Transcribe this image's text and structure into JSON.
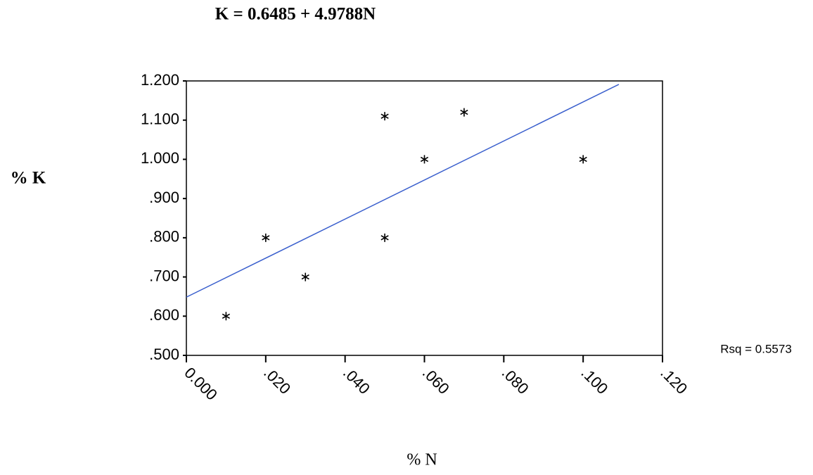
{
  "chart_data": {
    "type": "scatter",
    "title": "K = 0.6485 + 4.9788N",
    "x_label": "% N",
    "y_label": "% K",
    "annotation": "Rsq = 0.5573",
    "x": [
      0.01,
      0.02,
      0.03,
      0.05,
      0.05,
      0.06,
      0.07,
      0.1
    ],
    "values": [
      0.6,
      0.8,
      0.7,
      1.11,
      0.8,
      1.0,
      1.12,
      1.0
    ],
    "color": "#000000",
    "trend_line": {
      "color": "#3a5fcd",
      "x": [
        0,
        0.109
      ],
      "values": [
        0.6485,
        1.1912
      ]
    },
    "xlim": [
      0,
      0.12
    ],
    "ylim": [
      0.5,
      1.2
    ],
    "xticks": [
      {
        "value": 0,
        "label": "0.000"
      },
      {
        "value": 0.02,
        "label": ".020"
      },
      {
        "value": 0.04,
        "label": ".040"
      },
      {
        "value": 0.06,
        "label": ".060"
      },
      {
        "value": 0.08,
        "label": ".080"
      },
      {
        "value": 0.1,
        "label": ".100"
      },
      {
        "value": 0.12,
        "label": ".120"
      }
    ],
    "yticks": [
      {
        "value": 0.5,
        "label": ".500"
      },
      {
        "value": 0.6,
        "label": ".600"
      },
      {
        "value": 0.7,
        "label": ".700"
      },
      {
        "value": 0.8,
        "label": ".800"
      },
      {
        "value": 0.9,
        "label": ".900"
      },
      {
        "value": 1.0,
        "label": "1.000"
      },
      {
        "value": 1.1,
        "label": "1.100"
      },
      {
        "value": 1.2,
        "label": "1.200"
      }
    ],
    "grid": false
  }
}
